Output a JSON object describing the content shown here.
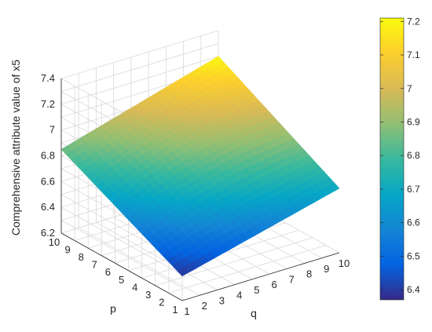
{
  "chart_data": {
    "type": "surface",
    "title": "",
    "xlabel": "q",
    "ylabel": "p",
    "zlabel": "Comprehensive attribute value of x5",
    "x_ticks": [
      "1",
      "2",
      "3",
      "4",
      "5",
      "6",
      "7",
      "8",
      "9",
      "10"
    ],
    "y_ticks": [
      "1",
      "2",
      "3",
      "4",
      "5",
      "6",
      "7",
      "8",
      "9",
      "10"
    ],
    "z_ticks": [
      "6.2",
      "6.4",
      "6.6",
      "6.8",
      "7",
      "7.2",
      "7.4"
    ],
    "xlim": [
      1,
      10
    ],
    "ylim": [
      1,
      10
    ],
    "zlim": [
      6.2,
      7.4
    ],
    "grid": true,
    "corner_values": {
      "q1_p1": 6.39,
      "q10_p1": 6.7,
      "q1_p10": 6.85,
      "q10_p10": 7.2
    },
    "colorbar": {
      "colormap": "parula",
      "range": [
        6.37,
        7.21
      ],
      "ticks": [
        "6.4",
        "6.5",
        "6.6",
        "6.7",
        "6.8",
        "6.9",
        "7",
        "7.1",
        "7.2"
      ]
    }
  }
}
